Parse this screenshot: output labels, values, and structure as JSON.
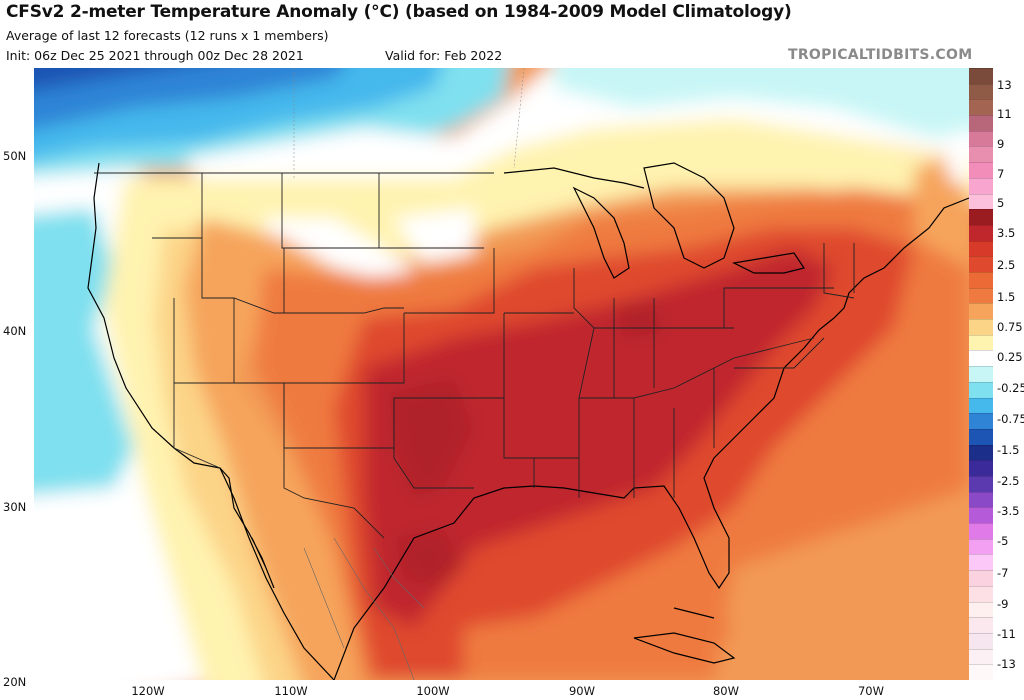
{
  "title": "CFSv2 2-meter Temperature Anomaly (°C) (based on 1984-2009 Model Climatology)",
  "subtitle": "Average of last 12 forecasts (12 runs x 1 members)",
  "init": "Init: 06z Dec 25 2021 through 00z Dec 28 2021",
  "valid": "Valid for: Feb 2022",
  "brand": "TROPICALTIDBITS.COM",
  "lat_labels": [
    "50N",
    "40N",
    "30N",
    "20N"
  ],
  "lon_labels": [
    "120W",
    "110W",
    "100W",
    "90W",
    "80W",
    "70W"
  ],
  "colorbar": {
    "labels": [
      "13",
      "11",
      "9",
      "7",
      "5",
      "3.5",
      "2.5",
      "1.5",
      "0.75",
      "0.25",
      "-0.25",
      "-0.75",
      "-1.5",
      "-2.5",
      "-3.5",
      "-5",
      "-7",
      "-9",
      "-11",
      "-13"
    ],
    "colors": [
      "#7a4a3a",
      "#8f5a46",
      "#b8667a",
      "#d77a9a",
      "#f28cb8",
      "#f8a5d0",
      "#c0272d",
      "#df4a2f",
      "#ef7a3f",
      "#f6a45c",
      "#fcd488",
      "#fff3b0",
      "#ffffff",
      "#c8f6f6",
      "#7fe0ef",
      "#45b8ec",
      "#2f84d6",
      "#1d55b4",
      "#1b2f8a",
      "#3a2a9a",
      "#5a3aae",
      "#8a4ac8",
      "#b55ad8",
      "#e07ae8",
      "#f4a0f2",
      "#fcc8f8",
      "#fddcdc",
      "#fff0f0",
      "#f6e6f0",
      "#fbeef8",
      "#f8f0f4",
      "#fce8e8",
      "#f4d8d8",
      "#f0c8d0",
      "#fce4ec",
      "#ffe6e6",
      "#ffffff",
      "#ffffff",
      "#ffffff"
    ]
  }
}
